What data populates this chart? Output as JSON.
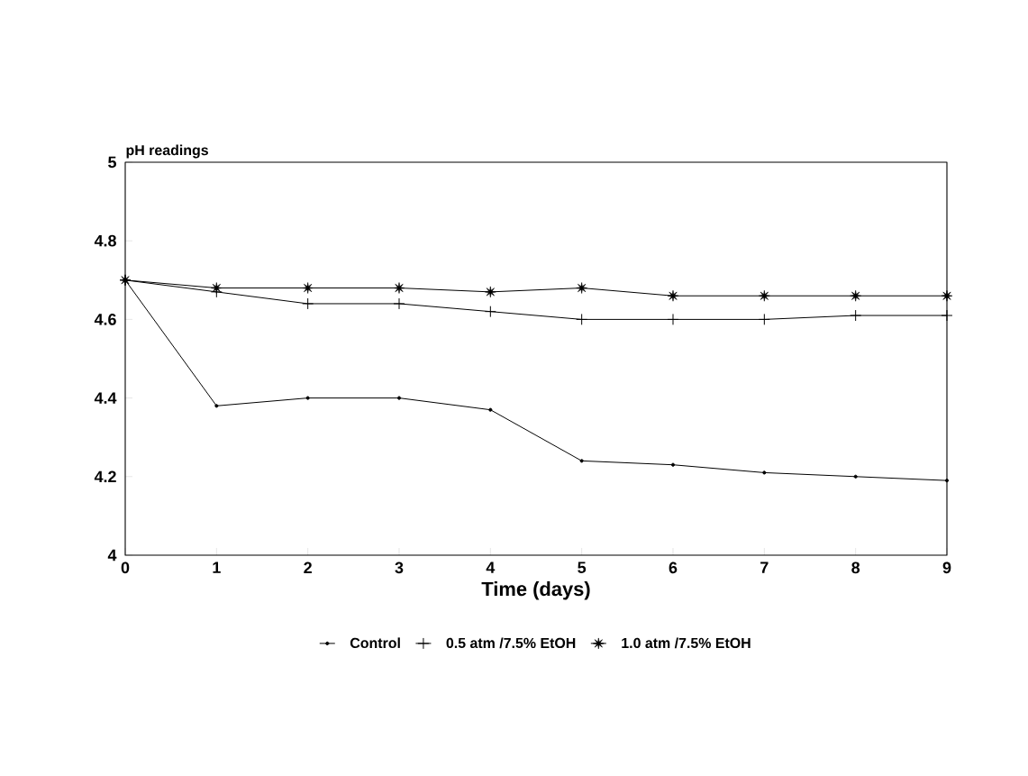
{
  "chart_data": {
    "type": "line",
    "xlabel": "Time (days)",
    "ylabel": "pH readings",
    "x": [
      0,
      1,
      2,
      3,
      4,
      5,
      6,
      7,
      8,
      9
    ],
    "series": [
      {
        "name": "Control",
        "color": "#000000",
        "marker": "circle",
        "values": [
          4.7,
          4.38,
          4.4,
          4.4,
          4.37,
          4.24,
          4.23,
          4.21,
          4.2,
          4.19
        ]
      },
      {
        "name": "0.5 atm /7.5% EtOH",
        "color": "#000000",
        "marker": "cross",
        "values": [
          4.7,
          4.67,
          4.64,
          4.64,
          4.62,
          4.6,
          4.6,
          4.6,
          4.61,
          4.61
        ]
      },
      {
        "name": "1.0 atm /7.5% EtOH",
        "color": "#000000",
        "marker": "star",
        "values": [
          4.7,
          4.68,
          4.68,
          4.68,
          4.67,
          4.68,
          4.66,
          4.66,
          4.66,
          4.66
        ]
      }
    ],
    "xlim": [
      0,
      9
    ],
    "ylim": [
      4,
      5
    ],
    "xticks": [
      0,
      1,
      2,
      3,
      4,
      5,
      6,
      7,
      8,
      9
    ],
    "yticks": [
      4,
      4.2,
      4.4,
      4.6,
      4.8,
      5
    ],
    "line_style": "solid",
    "grid": false,
    "legend": "bottom"
  }
}
